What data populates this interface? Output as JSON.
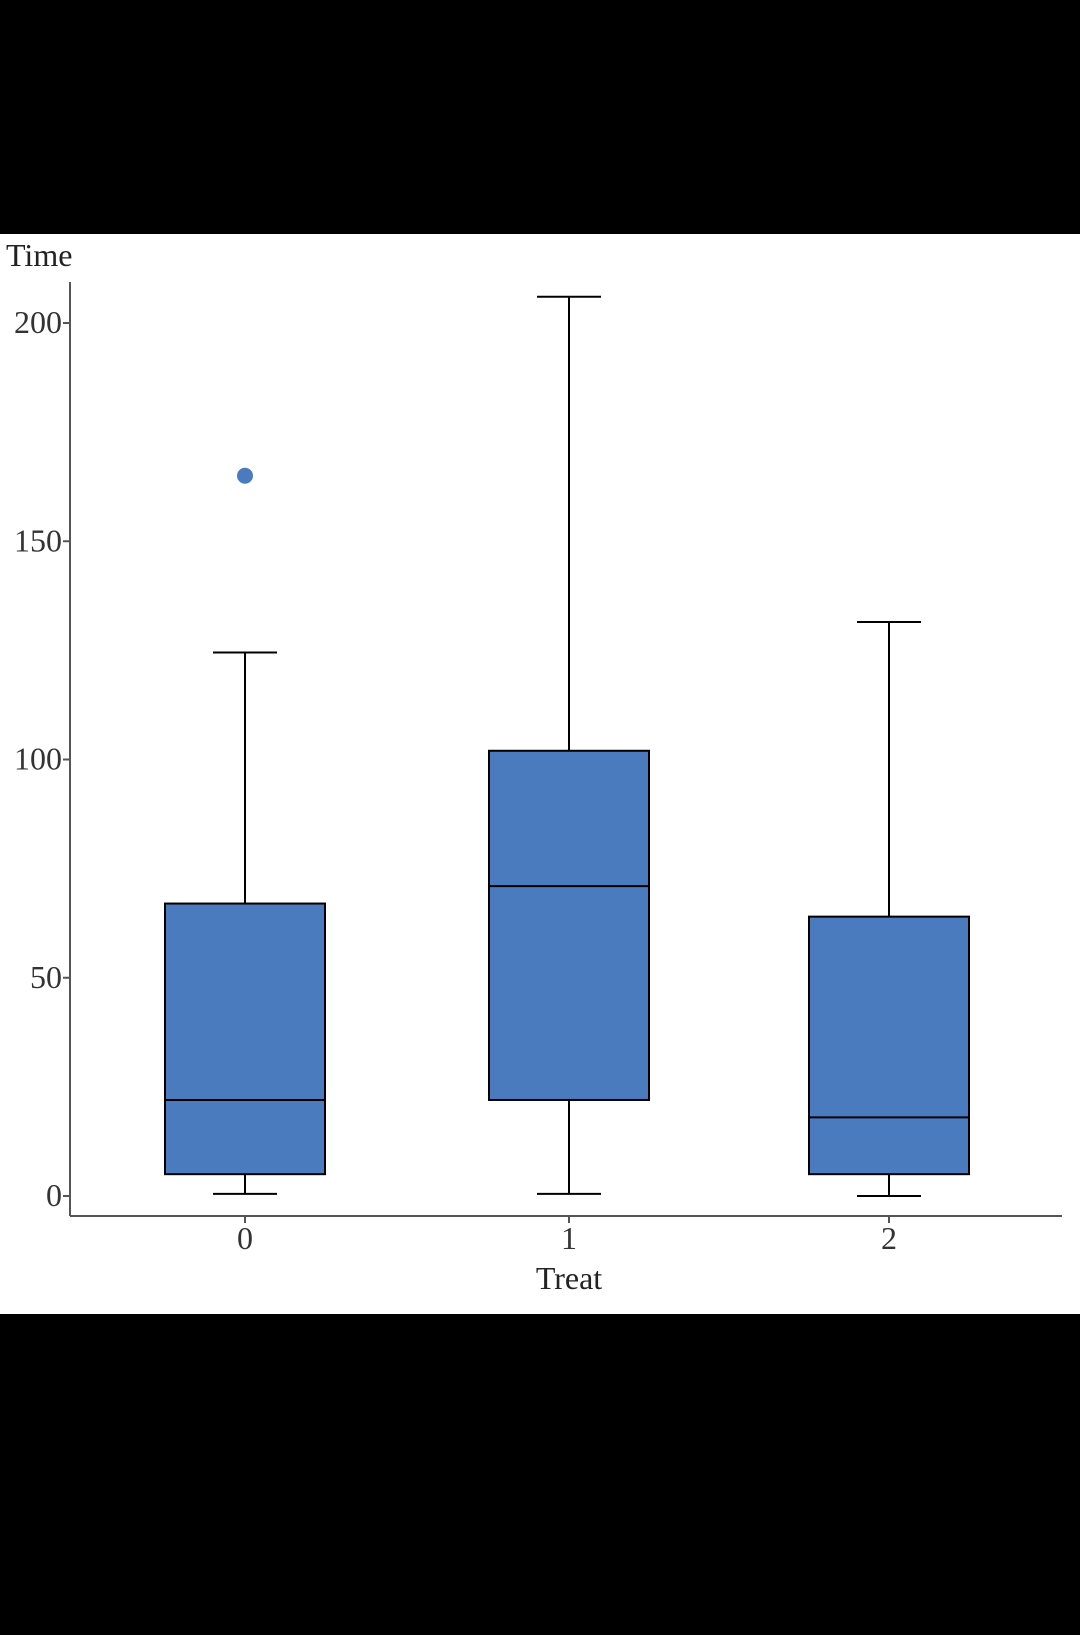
{
  "chart_data": {
    "type": "box",
    "xlabel": "Treat",
    "ylabel": "Time",
    "categories": [
      "0",
      "1",
      "2"
    ],
    "y_ticks": [
      0,
      50,
      100,
      150,
      200
    ],
    "ylim": [
      -5,
      210
    ],
    "grid": false,
    "box_color": "#4a7bbf",
    "outlier_color": "#4a7bbf",
    "boxes": [
      {
        "category": "0",
        "whisker_low": 0.5,
        "q1": 5,
        "median": 22,
        "q3": 67,
        "whisker_high": 124.5,
        "outliers": [
          165
        ]
      },
      {
        "category": "1",
        "whisker_low": 0.5,
        "q1": 22,
        "median": 71,
        "q3": 102,
        "whisker_high": 206,
        "outliers": []
      },
      {
        "category": "2",
        "whisker_low": 0,
        "q1": 5,
        "median": 18,
        "q3": 64,
        "whisker_high": 131.5,
        "outliers": []
      }
    ]
  }
}
